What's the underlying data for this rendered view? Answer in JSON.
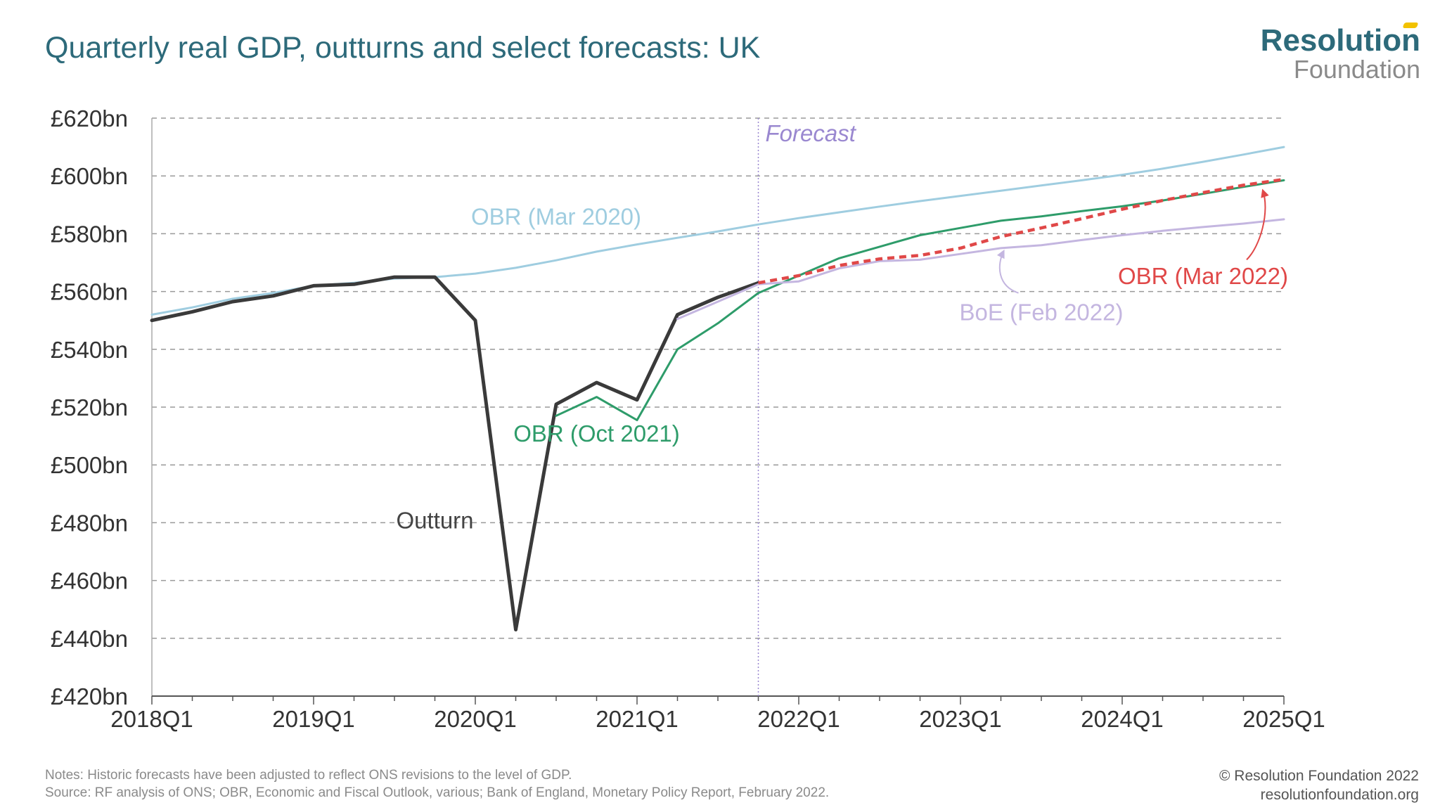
{
  "header": {
    "title": "Quarterly real GDP, outturns and select forecasts: UK"
  },
  "logo": {
    "line1": "Resolution",
    "line2": "Foundation"
  },
  "footer": {
    "notes": "Notes: Historic forecasts have been adjusted to reflect ONS revisions to the level of GDP.",
    "source": "Source: RF analysis of ONS; OBR, Economic and Fiscal Outlook, various; Bank of England, Monetary Policy Report, February 2022.",
    "copyright": "© Resolution Foundation 2022",
    "website": "resolutionfoundation.org"
  },
  "colors": {
    "title": "#2d6a7a",
    "outturn": "#3a3a3a",
    "obr_mar_2020": "#9fcde0",
    "obr_oct_2021": "#2e9c6a",
    "obr_mar_2022": "#e04848",
    "boe_feb_2022": "#c4b6e0",
    "forecast_line": "#9a88d0",
    "grid": "#9a9a9a"
  },
  "chart_data": {
    "type": "line",
    "title": "Quarterly real GDP, outturns and select forecasts: UK",
    "xlabel": "",
    "ylabel": "",
    "x_range": [
      "2018Q1",
      "2025Q1"
    ],
    "ylim": [
      420,
      620
    ],
    "y_ticks": [
      420,
      440,
      460,
      480,
      500,
      520,
      540,
      560,
      580,
      600,
      620
    ],
    "y_tick_labels": [
      "£420bn",
      "£440bn",
      "£460bn",
      "£480bn",
      "£500bn",
      "£520bn",
      "£540bn",
      "£560bn",
      "£580bn",
      "£600bn",
      "£620bn"
    ],
    "x_ticks": [
      "2018Q1",
      "2019Q1",
      "2020Q1",
      "2021Q1",
      "2022Q1",
      "2023Q1",
      "2024Q1",
      "2025Q1"
    ],
    "grid": "horizontal dashed",
    "forecast_marker": {
      "x": "2021Q4",
      "label": "Forecast"
    },
    "series": [
      {
        "key": "obr_mar_2020",
        "name": "OBR (Mar 2020)",
        "style": "solid",
        "points": [
          [
            "2018Q1",
            552
          ],
          [
            "2018Q2",
            554.5
          ],
          [
            "2018Q3",
            557.5
          ],
          [
            "2018Q4",
            559.5
          ],
          [
            "2019Q1",
            562
          ],
          [
            "2019Q2",
            563
          ],
          [
            "2019Q3",
            564.5
          ],
          [
            "2019Q4",
            565
          ],
          [
            "2020Q1",
            566.2
          ],
          [
            "2020Q2",
            568.2
          ],
          [
            "2020Q3",
            570.8
          ],
          [
            "2020Q4",
            573.8
          ],
          [
            "2021Q1",
            576.3
          ],
          [
            "2021Q2",
            578.6
          ],
          [
            "2021Q3",
            580.8
          ],
          [
            "2021Q4",
            583.2
          ],
          [
            "2022Q1",
            585.4
          ],
          [
            "2022Q2",
            587.4
          ],
          [
            "2022Q3",
            589.4
          ],
          [
            "2022Q4",
            591.3
          ],
          [
            "2023Q1",
            593.1
          ],
          [
            "2023Q2",
            594.9
          ],
          [
            "2023Q3",
            596.7
          ],
          [
            "2023Q4",
            598.5
          ],
          [
            "2024Q1",
            600.4
          ],
          [
            "2024Q2",
            602.5
          ],
          [
            "2024Q3",
            604.9
          ],
          [
            "2024Q4",
            607.4
          ],
          [
            "2025Q1",
            610
          ]
        ]
      },
      {
        "key": "outturn",
        "name": "Outturn",
        "style": "solid",
        "points": [
          [
            "2018Q1",
            550
          ],
          [
            "2018Q2",
            553
          ],
          [
            "2018Q3",
            556.5
          ],
          [
            "2018Q4",
            558.5
          ],
          [
            "2019Q1",
            562
          ],
          [
            "2019Q2",
            562.5
          ],
          [
            "2019Q3",
            565
          ],
          [
            "2019Q4",
            565
          ],
          [
            "2020Q1",
            550
          ],
          [
            "2020Q2",
            443
          ],
          [
            "2020Q3",
            521
          ],
          [
            "2020Q4",
            528.5
          ],
          [
            "2021Q1",
            522.5
          ],
          [
            "2021Q2",
            552
          ],
          [
            "2021Q3",
            558
          ],
          [
            "2021Q4",
            563
          ]
        ]
      },
      {
        "key": "obr_oct_2021",
        "name": "OBR (Oct 2021)",
        "style": "solid",
        "points": [
          [
            "2020Q3",
            517
          ],
          [
            "2020Q4",
            523.5
          ],
          [
            "2021Q1",
            515.5
          ],
          [
            "2021Q2",
            540
          ],
          [
            "2021Q3",
            549
          ],
          [
            "2021Q4",
            559.5
          ],
          [
            "2022Q1",
            565.5
          ],
          [
            "2022Q2",
            571.5
          ],
          [
            "2022Q3",
            575.5
          ],
          [
            "2022Q4",
            579.5
          ],
          [
            "2023Q1",
            582
          ],
          [
            "2023Q2",
            584.5
          ],
          [
            "2023Q3",
            586
          ],
          [
            "2023Q4",
            587.8
          ],
          [
            "2024Q1",
            589.5
          ],
          [
            "2024Q2",
            591.5
          ],
          [
            "2024Q3",
            593.8
          ],
          [
            "2024Q4",
            596.2
          ],
          [
            "2025Q1",
            598.5
          ]
        ]
      },
      {
        "key": "boe_feb_2022",
        "name": "BoE (Feb 2022)",
        "style": "solid",
        "points": [
          [
            "2021Q2",
            550.5
          ],
          [
            "2021Q3",
            556.5
          ],
          [
            "2021Q4",
            562.5
          ],
          [
            "2022Q1",
            563.5
          ],
          [
            "2022Q2",
            568
          ],
          [
            "2022Q3",
            570.5
          ],
          [
            "2022Q4",
            571
          ],
          [
            "2023Q1",
            573
          ],
          [
            "2023Q2",
            575
          ],
          [
            "2023Q3",
            576
          ],
          [
            "2023Q4",
            577.8
          ],
          [
            "2024Q1",
            579.5
          ],
          [
            "2024Q2",
            581
          ],
          [
            "2024Q3",
            582.3
          ],
          [
            "2024Q4",
            583.5
          ],
          [
            "2025Q1",
            585
          ]
        ]
      },
      {
        "key": "obr_mar_2022",
        "name": "OBR (Mar 2022)",
        "style": "dashed",
        "points": [
          [
            "2021Q4",
            563
          ],
          [
            "2022Q1",
            565.5
          ],
          [
            "2022Q2",
            569
          ],
          [
            "2022Q3",
            571.3
          ],
          [
            "2022Q4",
            572.5
          ],
          [
            "2023Q1",
            575
          ],
          [
            "2023Q2",
            579
          ],
          [
            "2023Q3",
            582
          ],
          [
            "2023Q4",
            585.2
          ],
          [
            "2024Q1",
            588.5
          ],
          [
            "2024Q2",
            591.5
          ],
          [
            "2024Q3",
            594.2
          ],
          [
            "2024Q4",
            596.8
          ],
          [
            "2025Q1",
            598.8
          ]
        ]
      }
    ],
    "annotations": [
      {
        "key": "outturn",
        "text": "Outturn",
        "x": "2019Q4",
        "y": 481
      },
      {
        "key": "obr_mar_2020",
        "text": "OBR (Mar 2020)",
        "x": "2020Q3",
        "y": 586
      },
      {
        "key": "obr_oct_2021",
        "text": "OBR (Oct 2021)",
        "x": "2020Q4",
        "y": 511
      },
      {
        "key": "obr_mar_2022",
        "text": "OBR (Mar 2022)",
        "x": "2024Q3",
        "y": 565.5
      },
      {
        "key": "boe_feb_2022",
        "text": "BoE (Feb 2022)",
        "x": "2023Q3",
        "y": 553
      }
    ]
  }
}
